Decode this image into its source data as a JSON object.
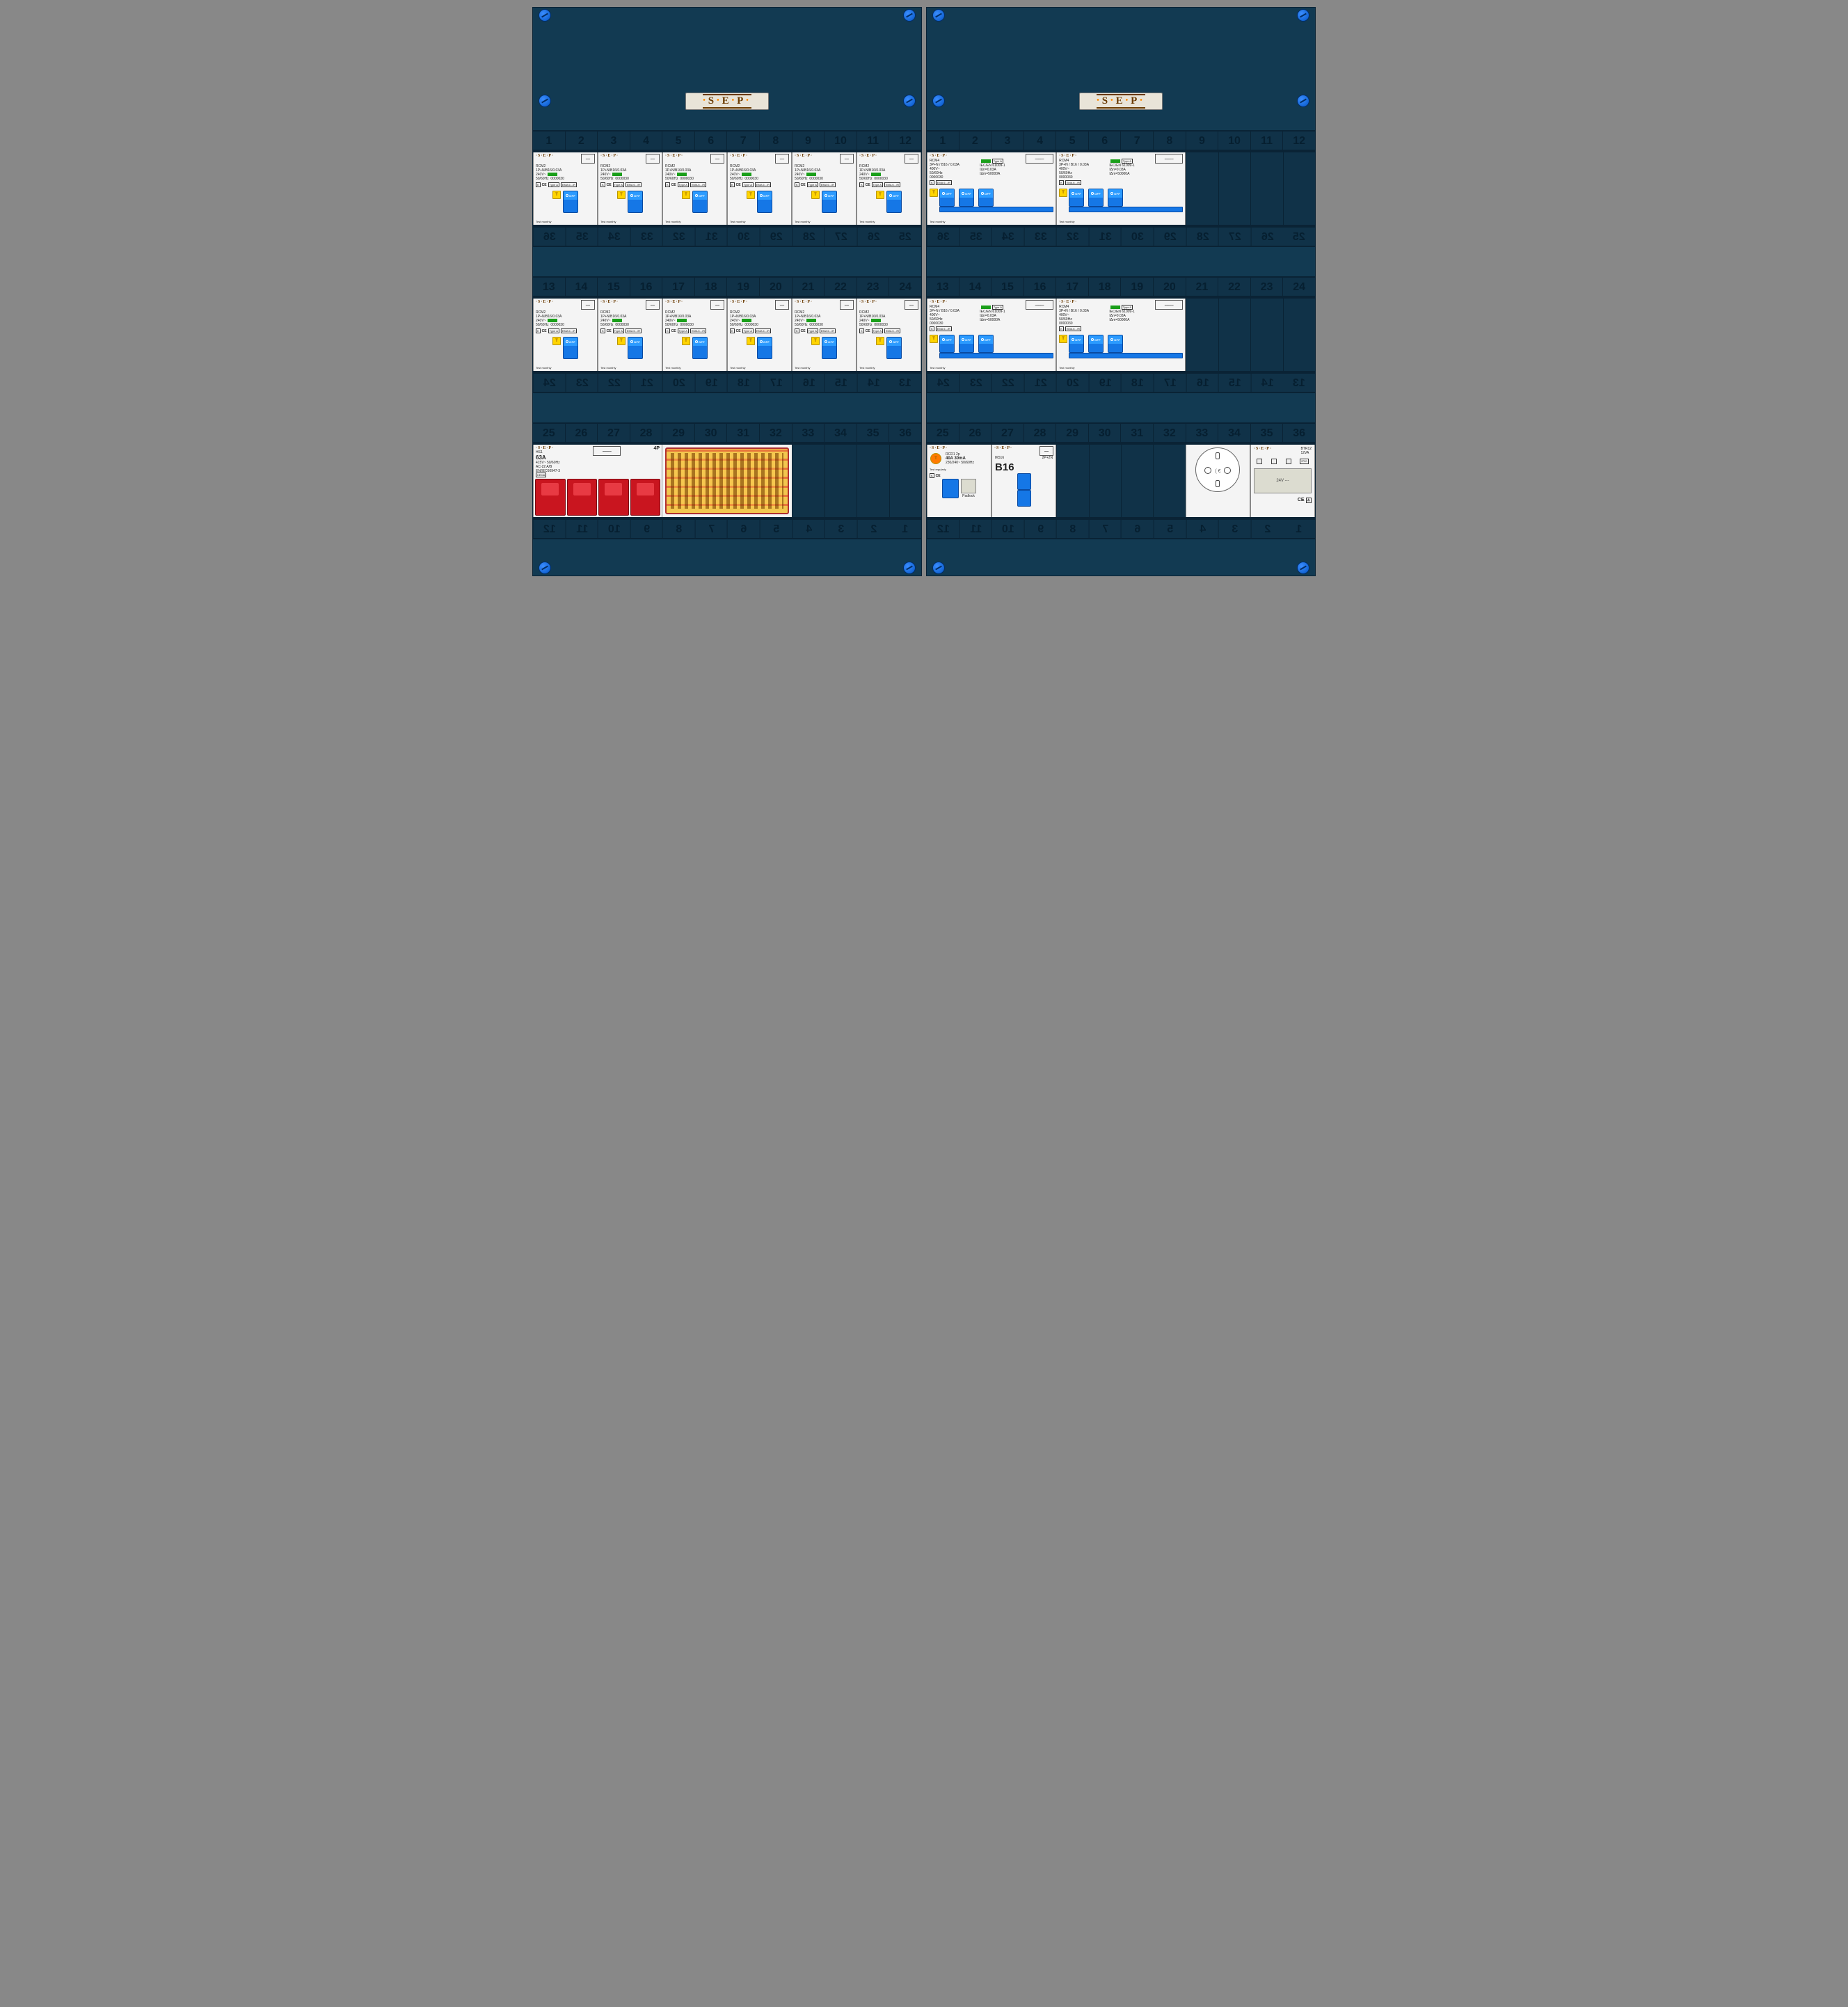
{
  "brand": "S·E·P",
  "slotNumbers": [
    1,
    2,
    3,
    4,
    5,
    6,
    7,
    8,
    9,
    10,
    11,
    12
  ],
  "row2Numbers": [
    13,
    14,
    15,
    16,
    17,
    18,
    19,
    20,
    21,
    22,
    23,
    24
  ],
  "row3Numbers": [
    25,
    26,
    27,
    28,
    29,
    30,
    31,
    32,
    33,
    34,
    35,
    36
  ],
  "rcm2": {
    "model": "RCM2",
    "rating": "1P+N/B16/0.03A",
    "voltage": "240V~",
    "freq": "50/60Hz",
    "std": "0000030",
    "type": "Type A",
    "ema": "EMA 6.../R",
    "ce": "CE",
    "off": "OFF",
    "testTxt": "Test monthly",
    "testBtn": "T"
  },
  "rcm4": {
    "model": "RCM4",
    "rating": "3P+N / B16 / 0.03A",
    "voltage": "400V~",
    "freq": "50/60Hz",
    "std": "0000030",
    "type": "Type A",
    "iec": "IEC/EN 61009-1",
    "idn": "IΔn=0.03A",
    "im": "IΔm=50000A",
    "ema": "EMA 6.../R",
    "ce": "CE",
    "off": "OFF",
    "testTxt": "Test monthly",
    "testBtn": "T"
  },
  "hs1": {
    "model": "HS1",
    "current": "63A",
    "voltage": "415V~",
    "freq": "50/60Hz",
    "ac": "AC-22 A/B",
    "iec": "EN/IEC60947-3",
    "kema": "KEMA",
    "poles": "4P"
  },
  "rcd": {
    "model": "RCD1   2p",
    "rating": "40A   30mA",
    "volt": "230/240~  50/60Hz",
    "testBtn": "T",
    "testTxt": "Test regularly",
    "ce": "CE",
    "kema": "KEMA",
    "padlock": "Padlock"
  },
  "ik516": {
    "model": "IK516",
    "big": "B16",
    "poles": "2P+2N"
  },
  "btr": {
    "model": "BTR12",
    "va": "12VA",
    "ip": "IP20",
    "ce": "CE",
    "volt": "24V ---"
  },
  "colors": {
    "enclosure": "#123a52",
    "stripBg": "#103248",
    "blueSwitch": "#1577e6",
    "redSwitch": "#c9151f",
    "yellowTest": "#ffd400",
    "green": "#1a9f1a",
    "busbarCover": "#f2c64e",
    "screw": "#0455c4"
  }
}
